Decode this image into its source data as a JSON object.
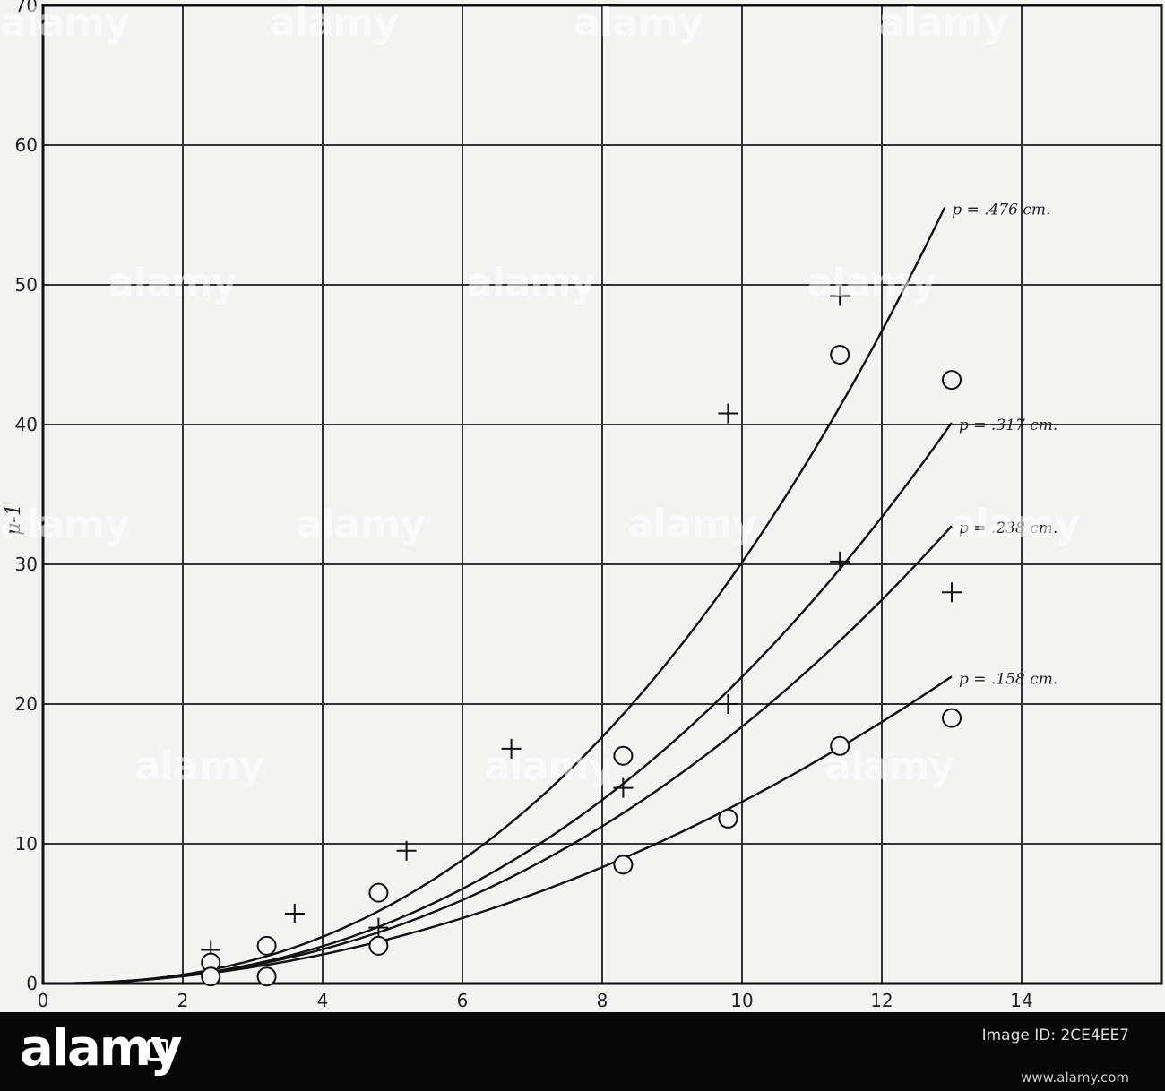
{
  "chart_data": {
    "type": "scatter",
    "title": "",
    "xlabel": "",
    "ylabel": "μ-1",
    "xlim": [
      0,
      16
    ],
    "ylim": [
      0,
      70
    ],
    "x_ticks": [
      0,
      2,
      4,
      6,
      8,
      10,
      12,
      14
    ],
    "x_tick_labels": [
      "0",
      "2",
      "4",
      "6",
      "8",
      "10",
      "12",
      "14"
    ],
    "y_ticks": [
      0,
      10,
      20,
      30,
      40,
      50,
      60,
      70
    ],
    "y_tick_labels": [
      "0",
      "10",
      "20",
      "30",
      "40",
      "50",
      "60",
      "70"
    ],
    "grid": true,
    "curves": [
      {
        "label": "p = .476 cm.",
        "exponent": 2.4,
        "coef": 0.12,
        "x": [
          0,
          1,
          2,
          3,
          4,
          5,
          6,
          7,
          8,
          9,
          10,
          11,
          12,
          12.9
        ]
      },
      {
        "label": "p = .317 cm.",
        "exponent": 2.3,
        "coef": 0.11,
        "x": [
          0,
          1,
          2,
          3,
          4,
          5,
          6,
          7,
          8,
          9,
          10,
          11,
          12,
          13
        ]
      },
      {
        "label": "p = .238 cm.",
        "exponent": 2.2,
        "coef": 0.116,
        "x": [
          0,
          1,
          2,
          3,
          4,
          5,
          6,
          7,
          8,
          9,
          10,
          11,
          12,
          13
        ]
      },
      {
        "label": "p = .158 cm.",
        "exponent": 2.0,
        "coef": 0.13,
        "x": [
          0,
          1,
          2,
          3,
          4,
          5,
          6,
          7,
          8,
          9,
          10,
          11,
          12,
          13
        ]
      }
    ],
    "crosses": [
      {
        "x": 2.4,
        "y": 2.4
      },
      {
        "x": 3.6,
        "y": 5.0
      },
      {
        "x": 4.8,
        "y": 4.0
      },
      {
        "x": 5.2,
        "y": 9.5
      },
      {
        "x": 6.7,
        "y": 16.8
      },
      {
        "x": 8.3,
        "y": 14.0
      },
      {
        "x": 9.8,
        "y": 40.8
      },
      {
        "x": 9.8,
        "y": 20.0
      },
      {
        "x": 11.4,
        "y": 49.2
      },
      {
        "x": 11.4,
        "y": 30.2
      },
      {
        "x": 13.0,
        "y": 28.0
      }
    ],
    "circles": [
      {
        "x": 2.4,
        "y": 1.5
      },
      {
        "x": 2.4,
        "y": 0.5
      },
      {
        "x": 3.2,
        "y": 2.7
      },
      {
        "x": 3.2,
        "y": 0.5
      },
      {
        "x": 4.8,
        "y": 6.5
      },
      {
        "x": 4.8,
        "y": 2.7
      },
      {
        "x": 8.3,
        "y": 16.3
      },
      {
        "x": 8.3,
        "y": 8.5
      },
      {
        "x": 9.8,
        "y": 11.8
      },
      {
        "x": 11.4,
        "y": 45.0
      },
      {
        "x": 11.4,
        "y": 17.0
      },
      {
        "x": 13.0,
        "y": 43.2
      },
      {
        "x": 13.0,
        "y": 19.0
      }
    ]
  },
  "watermark": "alamy",
  "banner": {
    "logo": "alamy",
    "id_label": "Image ID: 2CE4EE7",
    "id": "",
    "url": "www.alamy.com"
  }
}
